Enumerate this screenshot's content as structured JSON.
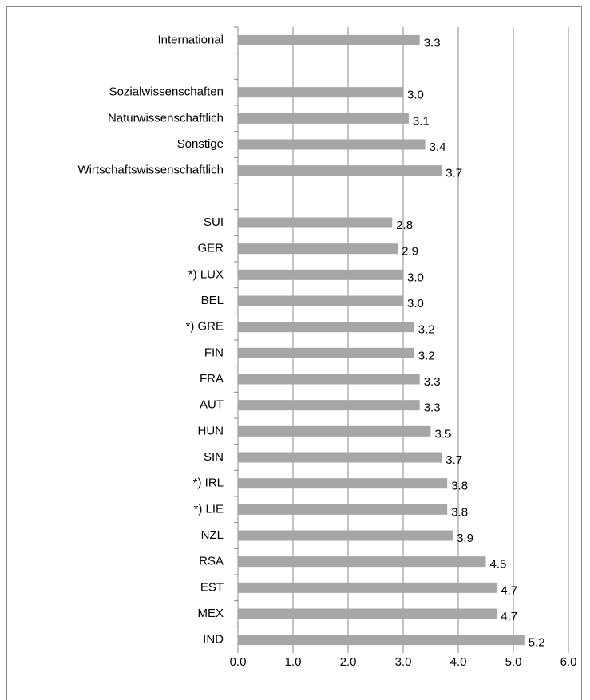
{
  "chart_data": {
    "type": "bar",
    "orientation": "horizontal",
    "categories": [
      "International",
      null,
      "Sozialwissenschaften",
      "Naturwissenschaftlich",
      "Sonstige",
      "Wirtschaftswissenschaftlich",
      null,
      "SUI",
      "GER",
      "*) LUX",
      "BEL",
      "*) GRE",
      "FIN",
      "FRA",
      "AUT",
      "HUN",
      "SIN",
      "*) IRL",
      "*) LIE",
      "NZL",
      "RSA",
      "EST",
      "MEX",
      "IND"
    ],
    "values": [
      3.3,
      null,
      3.0,
      3.1,
      3.4,
      3.7,
      null,
      2.8,
      2.9,
      3.0,
      3.0,
      3.2,
      3.2,
      3.3,
      3.3,
      3.5,
      3.7,
      3.8,
      3.8,
      3.9,
      4.5,
      4.7,
      4.7,
      5.2
    ],
    "value_labels": [
      "3.3",
      null,
      "3.0",
      "3.1",
      "3.4",
      "3.7",
      null,
      "2.8",
      "2.9",
      "3.0",
      "3.0",
      "3.2",
      "3.2",
      "3.3",
      "3.3",
      "3.5",
      "3.7",
      "3.8",
      "3.8",
      "3.9",
      "4.5",
      "4.7",
      "4.7",
      "5.2"
    ],
    "color": "#a6a6a6",
    "xlim": [
      0,
      6
    ],
    "xticks": [
      {
        "value": 0,
        "label": "0.0"
      },
      {
        "value": 1,
        "label": "1.0"
      },
      {
        "value": 2,
        "label": "2.0"
      },
      {
        "value": 3,
        "label": "3.0"
      },
      {
        "value": 4,
        "label": "4.0"
      },
      {
        "value": 5,
        "label": "5.0"
      },
      {
        "value": 6,
        "label": "6.0"
      }
    ],
    "grid": true
  }
}
